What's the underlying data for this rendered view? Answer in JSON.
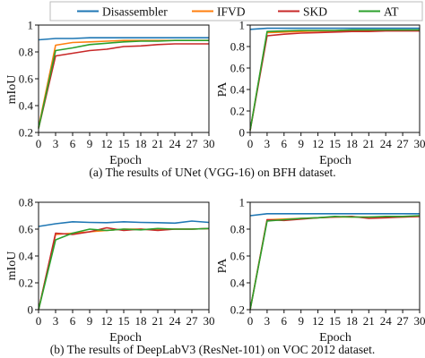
{
  "legend": {
    "items": [
      {
        "label": "Disassembler",
        "color": "#1f77b4"
      },
      {
        "label": "IFVD",
        "color": "#ff7f0e"
      },
      {
        "label": "SKD",
        "color": "#c82828"
      },
      {
        "label": "AT",
        "color": "#2ca02c"
      }
    ]
  },
  "captions": {
    "a": "(a) The results of UNet (VGG-16) on BFH dataset.",
    "b": "(b) The results of DeepLabV3 (ResNet-101) on VOC 2012 dataset."
  },
  "chart_data": [
    {
      "type": "line",
      "panel": "a-left",
      "xlabel": "Epoch",
      "ylabel": "mIoU",
      "xlim": [
        0,
        30
      ],
      "ylim": [
        0.2,
        1.0
      ],
      "xticks": [
        0,
        3,
        6,
        9,
        12,
        15,
        18,
        21,
        24,
        27,
        30
      ],
      "yticks": [
        0.2,
        0.4,
        0.6,
        0.8,
        1.0
      ],
      "ytick_labels": [
        "0.2",
        "0.4",
        "0.6",
        "0.8",
        "1"
      ],
      "x": [
        0,
        3,
        6,
        9,
        12,
        15,
        18,
        21,
        24,
        27,
        30
      ],
      "series": [
        {
          "name": "Disassembler",
          "color": "#1f77b4",
          "values": [
            0.89,
            0.9,
            0.9,
            0.905,
            0.905,
            0.905,
            0.905,
            0.905,
            0.905,
            0.905,
            0.905
          ]
        },
        {
          "name": "IFVD",
          "color": "#ff7f0e",
          "values": [
            0.24,
            0.85,
            0.87,
            0.875,
            0.88,
            0.885,
            0.885,
            0.885,
            0.885,
            0.885,
            0.885
          ]
        },
        {
          "name": "SKD",
          "color": "#c82828",
          "values": [
            0.23,
            0.77,
            0.79,
            0.81,
            0.82,
            0.84,
            0.845,
            0.855,
            0.86,
            0.86,
            0.86
          ]
        },
        {
          "name": "AT",
          "color": "#2ca02c",
          "values": [
            0.23,
            0.81,
            0.83,
            0.855,
            0.865,
            0.875,
            0.88,
            0.88,
            0.885,
            0.885,
            0.885
          ]
        }
      ]
    },
    {
      "type": "line",
      "panel": "a-right",
      "xlabel": "Epoch",
      "ylabel": "PA",
      "xlim": [
        0,
        30
      ],
      "ylim": [
        0,
        1.0
      ],
      "xticks": [
        0,
        3,
        6,
        9,
        12,
        15,
        18,
        21,
        24,
        27,
        30
      ],
      "yticks": [
        0,
        0.2,
        0.4,
        0.6,
        0.8,
        1.0
      ],
      "ytick_labels": [
        "0",
        "0.2",
        "0.4",
        "0.6",
        "0.8",
        "1"
      ],
      "x": [
        0,
        3,
        6,
        9,
        12,
        15,
        18,
        21,
        24,
        27,
        30
      ],
      "series": [
        {
          "name": "Disassembler",
          "color": "#1f77b4",
          "values": [
            0.96,
            0.97,
            0.97,
            0.97,
            0.97,
            0.97,
            0.97,
            0.97,
            0.97,
            0.97,
            0.97
          ]
        },
        {
          "name": "IFVD",
          "color": "#ff7f0e",
          "values": [
            0.02,
            0.93,
            0.935,
            0.94,
            0.945,
            0.945,
            0.95,
            0.95,
            0.95,
            0.95,
            0.95
          ]
        },
        {
          "name": "SKD",
          "color": "#c82828",
          "values": [
            0.02,
            0.9,
            0.915,
            0.925,
            0.93,
            0.935,
            0.94,
            0.94,
            0.945,
            0.945,
            0.945
          ]
        },
        {
          "name": "AT",
          "color": "#2ca02c",
          "values": [
            0.02,
            0.94,
            0.945,
            0.95,
            0.95,
            0.95,
            0.955,
            0.955,
            0.955,
            0.955,
            0.955
          ]
        }
      ]
    },
    {
      "type": "line",
      "panel": "b-left",
      "xlabel": "Epoch",
      "ylabel": "mIoU",
      "xlim": [
        0,
        30
      ],
      "ylim": [
        0,
        0.8
      ],
      "xticks": [
        0,
        3,
        6,
        9,
        12,
        15,
        18,
        21,
        24,
        27,
        30
      ],
      "yticks": [
        0,
        0.2,
        0.4,
        0.6,
        0.8
      ],
      "ytick_labels": [
        "0",
        "0.2",
        "0.4",
        "0.6",
        "0.8"
      ],
      "x": [
        0,
        3,
        6,
        9,
        12,
        15,
        18,
        21,
        24,
        27,
        30
      ],
      "series": [
        {
          "name": "Disassembler",
          "color": "#1f77b4",
          "values": [
            0.62,
            0.64,
            0.655,
            0.65,
            0.648,
            0.655,
            0.65,
            0.648,
            0.645,
            0.66,
            0.65
          ]
        },
        {
          "name": "IFVD",
          "color": "#ff7f0e",
          "values": [
            0.0,
            0.56,
            0.57,
            0.58,
            0.59,
            0.6,
            0.6,
            0.595,
            0.6,
            0.6,
            0.605
          ]
        },
        {
          "name": "SKD",
          "color": "#c82828",
          "values": [
            0.0,
            0.57,
            0.56,
            0.58,
            0.61,
            0.59,
            0.6,
            0.59,
            0.6,
            0.6,
            0.605
          ]
        },
        {
          "name": "AT",
          "color": "#2ca02c",
          "values": [
            0.0,
            0.52,
            0.57,
            0.6,
            0.59,
            0.6,
            0.595,
            0.605,
            0.6,
            0.6,
            0.605
          ]
        }
      ]
    },
    {
      "type": "line",
      "panel": "b-right",
      "xlabel": "Epoch",
      "ylabel": "PA",
      "xlim": [
        0,
        30
      ],
      "ylim": [
        0.2,
        1.0
      ],
      "xticks": [
        0,
        3,
        6,
        9,
        12,
        15,
        18,
        21,
        24,
        27,
        30
      ],
      "yticks": [
        0.2,
        0.4,
        0.6,
        0.8,
        1.0
      ],
      "ytick_labels": [
        "0.2",
        "0.4",
        "0.6",
        "0.8",
        "1"
      ],
      "x": [
        0,
        3,
        6,
        9,
        12,
        15,
        18,
        21,
        24,
        27,
        30
      ],
      "series": [
        {
          "name": "Disassembler",
          "color": "#1f77b4",
          "values": [
            0.9,
            0.915,
            0.915,
            0.915,
            0.915,
            0.915,
            0.915,
            0.915,
            0.915,
            0.915,
            0.915
          ]
        },
        {
          "name": "IFVD",
          "color": "#ff7f0e",
          "values": [
            0.2,
            0.87,
            0.875,
            0.88,
            0.885,
            0.89,
            0.89,
            0.89,
            0.89,
            0.89,
            0.895
          ]
        },
        {
          "name": "SKD",
          "color": "#c82828",
          "values": [
            0.2,
            0.87,
            0.865,
            0.875,
            0.885,
            0.89,
            0.895,
            0.88,
            0.885,
            0.89,
            0.895
          ]
        },
        {
          "name": "AT",
          "color": "#2ca02c",
          "values": [
            0.2,
            0.86,
            0.87,
            0.88,
            0.885,
            0.895,
            0.89,
            0.89,
            0.895,
            0.895,
            0.9
          ]
        }
      ]
    }
  ]
}
